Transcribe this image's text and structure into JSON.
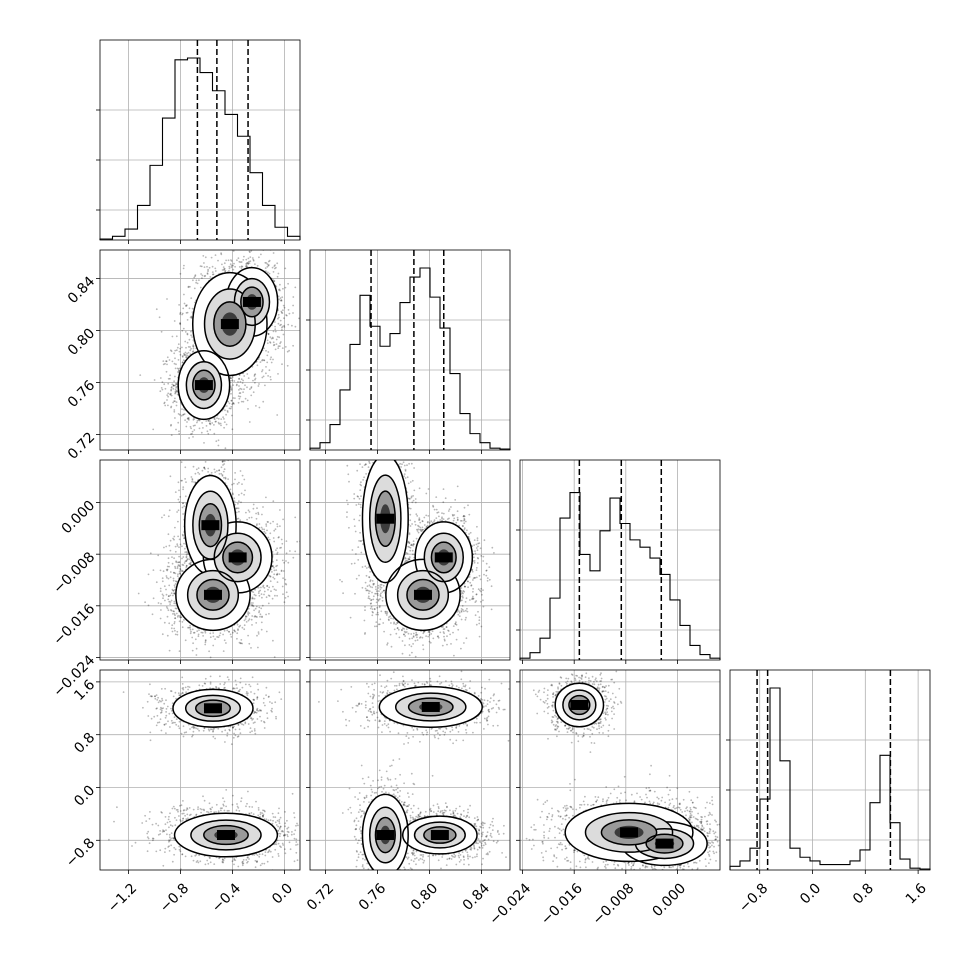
{
  "chart_data": {
    "type": "corner",
    "parameters": [
      {
        "ticks": [
          -1.2,
          -0.8,
          -0.4,
          0.0
        ],
        "tick_labels": [
          "−1.2",
          "−0.8",
          "−0.4",
          "0.0"
        ],
        "range": [
          -1.42,
          0.12
        ],
        "quantiles": [
          -0.67,
          -0.52,
          -0.28
        ]
      },
      {
        "ticks": [
          0.72,
          0.76,
          0.8,
          0.84
        ],
        "tick_labels": [
          "0.72",
          "0.76",
          "0.80",
          "0.84"
        ],
        "range": [
          0.708,
          0.862
        ],
        "quantiles": [
          0.755,
          0.788,
          0.811
        ]
      },
      {
        "ticks": [
          -0.024,
          -0.016,
          -0.008,
          0.0
        ],
        "tick_labels": [
          "−0.024",
          "−0.016",
          "−0.008",
          "0.000"
        ],
        "range": [
          -0.0244,
          0.0066
        ],
        "quantiles": [
          -0.0152,
          -0.0087,
          -0.0025
        ]
      },
      {
        "ticks": [
          -0.8,
          0.0,
          0.8,
          1.6
        ],
        "tick_labels": [
          "−0.8",
          "0.0",
          "0.8",
          "1.6"
        ],
        "range": [
          -1.25,
          1.78
        ],
        "quantiles": [
          -0.84,
          -0.68,
          1.18
        ]
      }
    ],
    "y_tick_labels_rows": [
      [
        "0.72",
        "0.76",
        "0.80",
        "0.84"
      ],
      [
        "−0.024",
        "−0.016",
        "−0.008",
        "0.000"
      ],
      [
        "−0.8",
        "0.0",
        "0.8",
        "1.6"
      ]
    ],
    "histograms": [
      [
        0.005,
        0.02,
        0.06,
        0.19,
        0.41,
        0.67,
        0.99,
        1.0,
        0.92,
        0.82,
        0.69,
        0.57,
        0.37,
        0.19,
        0.07,
        0.02
      ],
      [
        0.01,
        0.04,
        0.14,
        0.33,
        0.58,
        0.85,
        0.68,
        0.57,
        0.64,
        0.81,
        0.95,
        1.0,
        0.84,
        0.67,
        0.42,
        0.2,
        0.09,
        0.04,
        0.01,
        0.005
      ],
      [
        0.01,
        0.04,
        0.12,
        0.34,
        0.78,
        0.92,
        0.58,
        0.49,
        0.71,
        0.89,
        0.75,
        0.66,
        0.62,
        0.56,
        0.47,
        0.33,
        0.19,
        0.08,
        0.03,
        0.01
      ],
      [
        0.02,
        0.05,
        0.12,
        0.39,
        1.0,
        0.6,
        0.12,
        0.07,
        0.05,
        0.03,
        0.03,
        0.03,
        0.05,
        0.11,
        0.37,
        0.63,
        0.26,
        0.06,
        0.01,
        0.005
      ]
    ],
    "blobs": [
      [
        [
          {
            "x": -0.62,
            "y": 0.758,
            "sx": 0.09,
            "sy": 0.012,
            "a": 5
          },
          {
            "x": -0.42,
            "y": 0.805,
            "sx": 0.13,
            "sy": 0.018,
            "a": 6
          },
          {
            "x": -0.25,
            "y": 0.822,
            "sx": 0.09,
            "sy": 0.012,
            "a": 3
          }
        ]
      ],
      [
        [
          {
            "x": -0.57,
            "y": -0.0035,
            "sx": 0.09,
            "sy": 0.0035,
            "a": 4
          },
          {
            "x": -0.36,
            "y": -0.0085,
            "sx": 0.12,
            "sy": 0.0025,
            "a": 4
          },
          {
            "x": -0.55,
            "y": -0.0143,
            "sx": 0.13,
            "sy": 0.0025,
            "a": 6
          }
        ],
        [
          {
            "x": 0.766,
            "y": -0.0025,
            "sx": 0.008,
            "sy": 0.0045,
            "a": 4
          },
          {
            "x": 0.811,
            "y": -0.0085,
            "sx": 0.01,
            "sy": 0.0025,
            "a": 4
          },
          {
            "x": 0.795,
            "y": -0.0143,
            "sx": 0.013,
            "sy": 0.0025,
            "a": 6
          }
        ]
      ],
      [
        [
          {
            "x": -0.55,
            "y": 1.2,
            "sx": 0.14,
            "sy": 0.13,
            "a": 4
          },
          {
            "x": -0.45,
            "y": -0.72,
            "sx": 0.18,
            "sy": 0.15,
            "a": 6
          }
        ],
        [
          {
            "x": 0.801,
            "y": 1.22,
            "sx": 0.018,
            "sy": 0.14,
            "a": 4
          },
          {
            "x": 0.766,
            "y": -0.72,
            "sx": 0.008,
            "sy": 0.28,
            "a": 4
          },
          {
            "x": 0.808,
            "y": -0.72,
            "sx": 0.013,
            "sy": 0.13,
            "a": 5
          }
        ],
        [
          {
            "x": -0.0152,
            "y": 1.25,
            "sx": 0.0017,
            "sy": 0.15,
            "a": 4
          },
          {
            "x": -0.0075,
            "y": -0.68,
            "sx": 0.0045,
            "sy": 0.2,
            "a": 6
          },
          {
            "x": -0.002,
            "y": -0.85,
            "sx": 0.003,
            "sy": 0.15,
            "a": 3
          }
        ]
      ]
    ],
    "grid": true,
    "legend": "none"
  }
}
